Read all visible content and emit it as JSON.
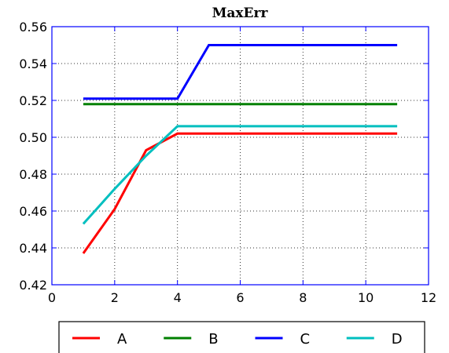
{
  "chart_data": {
    "type": "line",
    "title": "MaxErr",
    "xlabel": "",
    "ylabel": "",
    "xlim": [
      0,
      12
    ],
    "ylim": [
      0.42,
      0.56
    ],
    "x_ticks": [
      "0",
      "2",
      "4",
      "6",
      "8",
      "10",
      "12"
    ],
    "y_ticks": [
      "0.42",
      "0.44",
      "0.46",
      "0.48",
      "0.50",
      "0.52",
      "0.54",
      "0.56"
    ],
    "grid": true,
    "legend_placement": "bottom-outside",
    "axes_color": "#0000ff",
    "series": [
      {
        "name": "A",
        "color": "#ff0000",
        "x": [
          1,
          2,
          3,
          4,
          5,
          6,
          7,
          8,
          9,
          10,
          11
        ],
        "y": [
          0.437,
          0.461,
          0.493,
          0.502,
          0.502,
          0.502,
          0.502,
          0.502,
          0.502,
          0.502,
          0.502
        ]
      },
      {
        "name": "B",
        "color": "#008000",
        "x": [
          1,
          2,
          3,
          4,
          5,
          6,
          7,
          8,
          9,
          10,
          11
        ],
        "y": [
          0.518,
          0.518,
          0.518,
          0.518,
          0.518,
          0.518,
          0.518,
          0.518,
          0.518,
          0.518,
          0.518
        ]
      },
      {
        "name": "C",
        "color": "#0000ff",
        "x": [
          1,
          2,
          3,
          4,
          5,
          6,
          7,
          8,
          9,
          10,
          11
        ],
        "y": [
          0.521,
          0.521,
          0.521,
          0.521,
          0.55,
          0.55,
          0.55,
          0.55,
          0.55,
          0.55,
          0.55
        ]
      },
      {
        "name": "D",
        "color": "#00bfbf",
        "x": [
          1,
          2,
          3,
          4,
          5,
          6,
          7,
          8,
          9,
          10,
          11
        ],
        "y": [
          0.453,
          0.472,
          0.49,
          0.506,
          0.506,
          0.506,
          0.506,
          0.506,
          0.506,
          0.506,
          0.506
        ]
      }
    ]
  }
}
